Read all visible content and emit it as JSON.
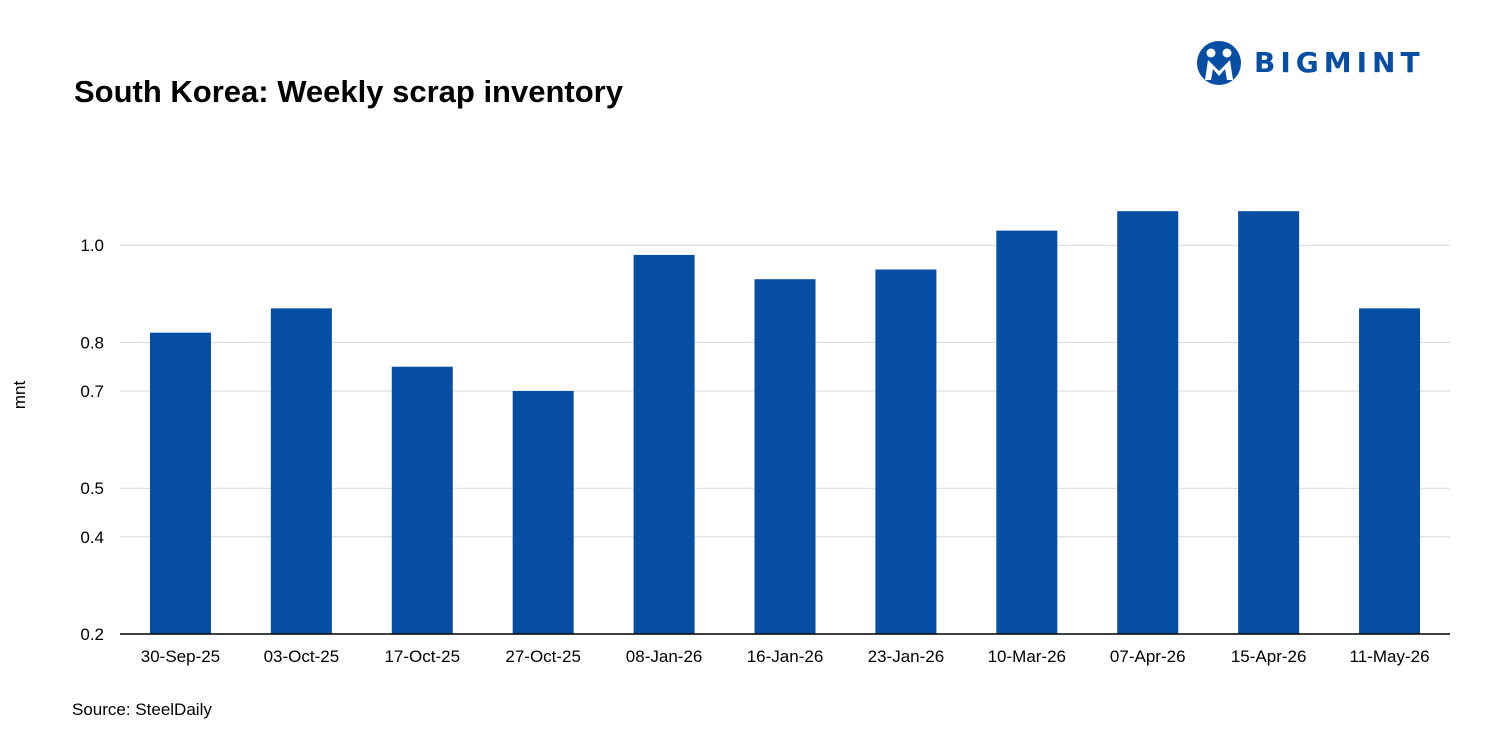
{
  "header": {
    "title": "South Korea: Weekly scrap inventory",
    "brand": "BIGMINT"
  },
  "footer": {
    "source": "Source: SteelDaily"
  },
  "colors": {
    "bar": "#054ea3",
    "brand": "#054ea3",
    "grid": "#d9d9d9",
    "axis": "#000000"
  },
  "chart_data": {
    "type": "bar",
    "title": "South Korea: Weekly scrap inventory",
    "xlabel": "",
    "ylabel": "mnt",
    "categories": [
      "30-Sep-25",
      "03-Oct-25",
      "17-Oct-25",
      "27-Oct-25",
      "08-Jan-26",
      "16-Jan-26",
      "23-Jan-26",
      "10-Mar-26",
      "07-Apr-26",
      "15-Apr-26",
      "11-May-26"
    ],
    "values": [
      0.82,
      0.87,
      0.75,
      0.7,
      0.98,
      0.93,
      0.95,
      1.03,
      1.07,
      1.07,
      0.87
    ],
    "y_ticks": [
      "0.2",
      "0.4",
      "0.5",
      "0.7",
      "0.8",
      "1.0"
    ],
    "ylim": [
      0.2,
      1.2
    ],
    "grid": true,
    "legend": "none"
  }
}
